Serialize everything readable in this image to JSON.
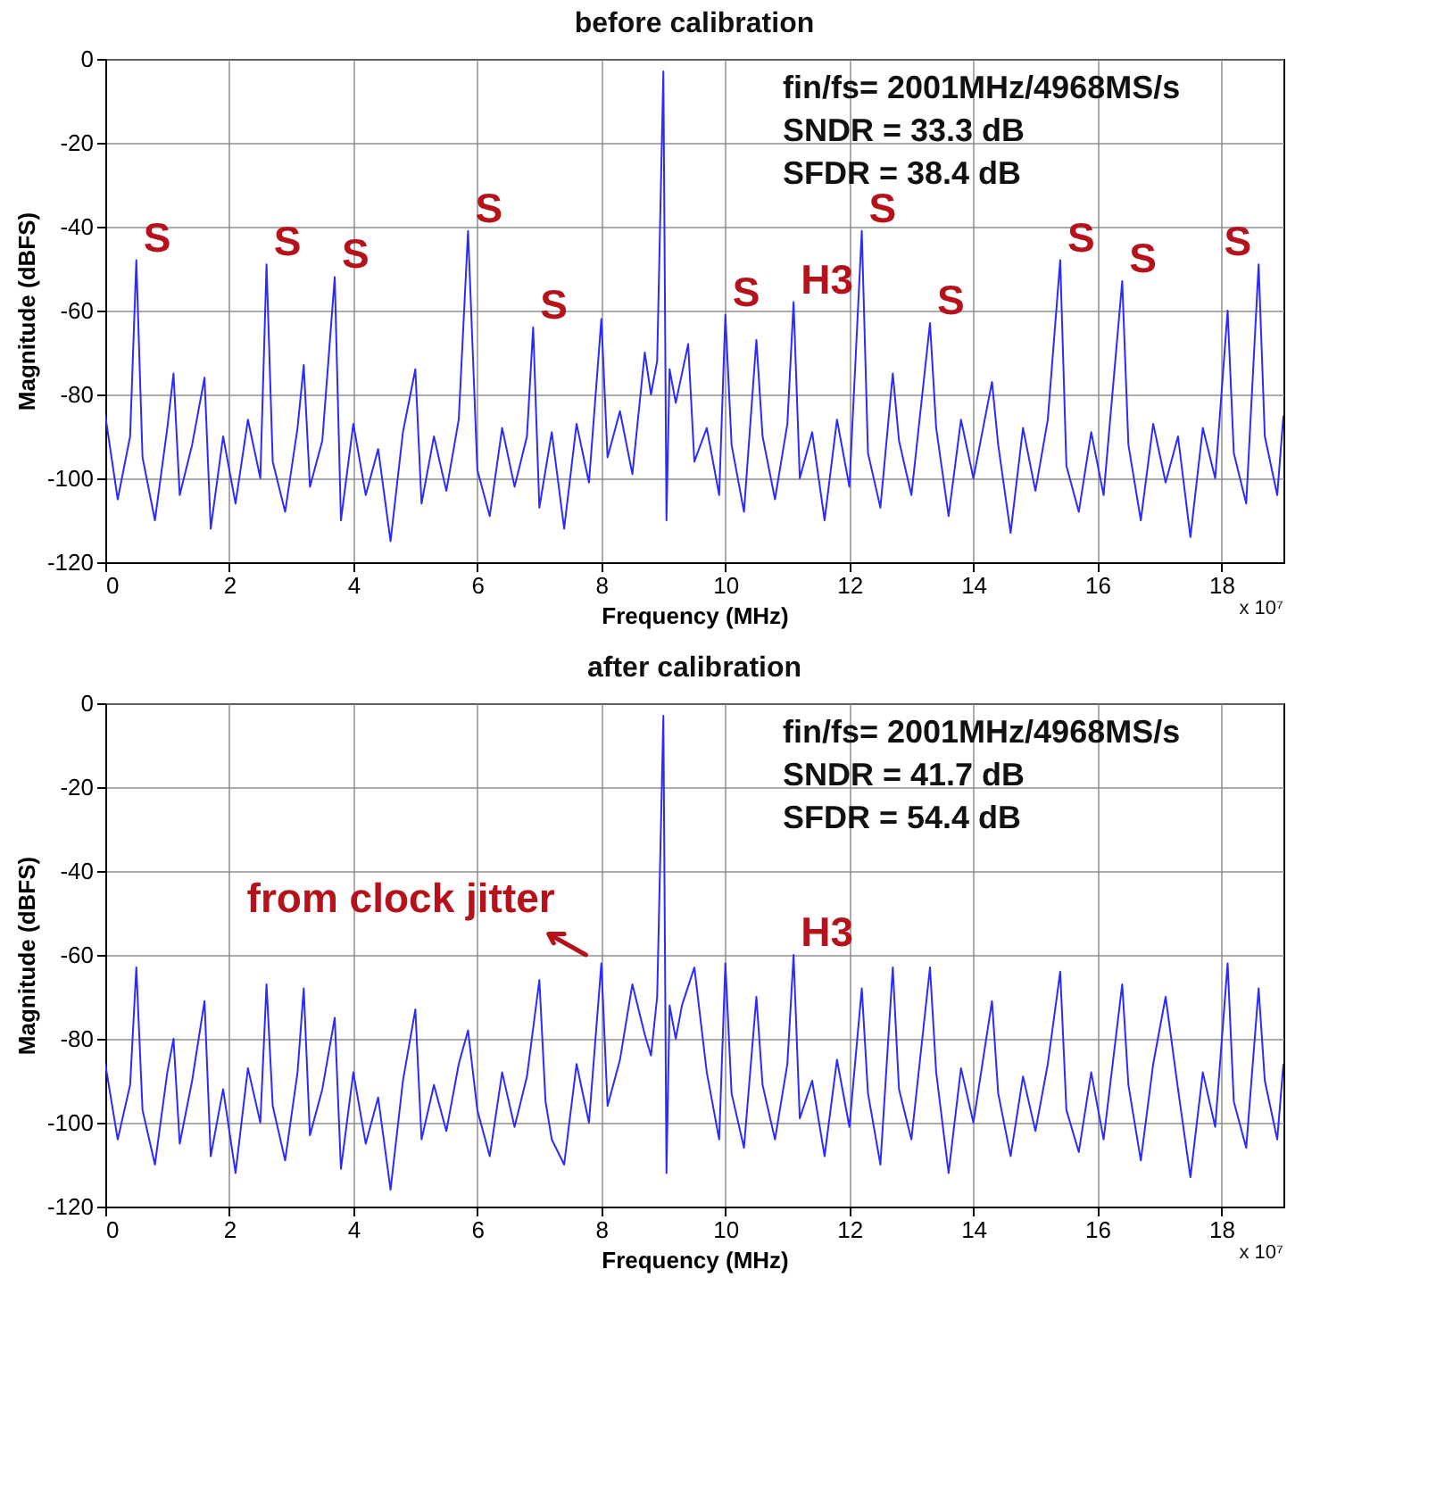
{
  "chart_data": [
    {
      "type": "line",
      "title": "before calibration",
      "xlabel": "Frequency (MHz)",
      "ylabel": "Magnitude (dBFS)",
      "xlim": [
        0,
        19
      ],
      "ylim": [
        -120,
        0
      ],
      "xticks": [
        0,
        2,
        4,
        6,
        8,
        10,
        12,
        14,
        16,
        18
      ],
      "yticks": [
        -120,
        -100,
        -80,
        -60,
        -40,
        -20,
        0
      ],
      "grid": true,
      "series": [
        {
          "color": "#2b2bff",
          "x": [
            0,
            0.2,
            0.4,
            0.5,
            0.6,
            0.8,
            1.0,
            1.1,
            1.2,
            1.4,
            1.6,
            1.7,
            1.9,
            2.1,
            2.3,
            2.5,
            2.6,
            2.7,
            2.9,
            3.1,
            3.2,
            3.3,
            3.5,
            3.7,
            3.8,
            4.0,
            4.2,
            4.4,
            4.6,
            4.8,
            5.0,
            5.1,
            5.3,
            5.5,
            5.7,
            5.85,
            6.0,
            6.2,
            6.4,
            6.6,
            6.8,
            6.9,
            7.0,
            7.2,
            7.4,
            7.6,
            7.8,
            8.0,
            8.1,
            8.3,
            8.5,
            8.7,
            8.8,
            8.9,
            9.0,
            9.05,
            9.1,
            9.2,
            9.4,
            9.5,
            9.7,
            9.9,
            10.0,
            10.1,
            10.3,
            10.5,
            10.6,
            10.8,
            11.0,
            11.1,
            11.2,
            11.4,
            11.6,
            11.8,
            12.0,
            12.2,
            12.3,
            12.5,
            12.7,
            12.8,
            13.0,
            13.3,
            13.4,
            13.6,
            13.8,
            14.0,
            14.3,
            14.4,
            14.6,
            14.8,
            15.0,
            15.2,
            15.4,
            15.5,
            15.7,
            15.9,
            16.1,
            16.4,
            16.5,
            16.7,
            16.9,
            17.1,
            17.3,
            17.5,
            17.7,
            17.9,
            18.1,
            18.2,
            18.4,
            18.6,
            18.7,
            18.9,
            19.0
          ],
          "values": [
            -85,
            -105,
            -90,
            -48,
            -95,
            -110,
            -88,
            -75,
            -104,
            -92,
            -76,
            -112,
            -90,
            -106,
            -86,
            -100,
            -49,
            -96,
            -108,
            -88,
            -73,
            -102,
            -91,
            -52,
            -110,
            -87,
            -104,
            -93,
            -115,
            -89,
            -74,
            -106,
            -90,
            -103,
            -86,
            -41,
            -98,
            -109,
            -88,
            -102,
            -90,
            -64,
            -107,
            -89,
            -112,
            -87,
            -101,
            -62,
            -95,
            -84,
            -99,
            -70,
            -80,
            -72,
            -3,
            -110,
            -74,
            -82,
            -68,
            -96,
            -88,
            -104,
            -61,
            -92,
            -108,
            -67,
            -90,
            -105,
            -87,
            -58,
            -100,
            -89,
            -110,
            -86,
            -102,
            -41,
            -94,
            -107,
            -75,
            -91,
            -104,
            -63,
            -88,
            -109,
            -86,
            -100,
            -77,
            -92,
            -113,
            -88,
            -103,
            -86,
            -48,
            -97,
            -108,
            -89,
            -104,
            -53,
            -92,
            -110,
            -87,
            -101,
            -90,
            -114,
            -88,
            -100,
            -60,
            -94,
            -106,
            -49,
            -90,
            -104,
            -85
          ]
        }
      ],
      "annotations": [
        "fin/fs= 2001MHz/4968MS/s",
        "SNDR = 33.3 dB",
        "SFDR = 38.4 dB",
        "x 10⁷",
        {
          "text": "S",
          "x": 0.5,
          "y": -48
        },
        {
          "text": "S",
          "x": 2.6,
          "y": -49
        },
        {
          "text": "S",
          "x": 3.7,
          "y": -52
        },
        {
          "text": "S",
          "x": 5.85,
          "y": -41
        },
        {
          "text": "S",
          "x": 6.9,
          "y": -64
        },
        {
          "text": "S",
          "x": 10.0,
          "y": -61
        },
        {
          "text": "H3",
          "x": 11.1,
          "y": -58
        },
        {
          "text": "S",
          "x": 12.2,
          "y": -41
        },
        {
          "text": "S",
          "x": 13.3,
          "y": -63
        },
        {
          "text": "S",
          "x": 15.4,
          "y": -48
        },
        {
          "text": "S",
          "x": 16.4,
          "y": -53
        },
        {
          "text": "S",
          "x": 18.6,
          "y": -49
        }
      ]
    },
    {
      "type": "line",
      "title": "after calibration",
      "xlabel": "Frequency (MHz)",
      "ylabel": "Magnitude (dBFS)",
      "xlim": [
        0,
        19
      ],
      "ylim": [
        -120,
        0
      ],
      "xticks": [
        0,
        2,
        4,
        6,
        8,
        10,
        12,
        14,
        16,
        18
      ],
      "yticks": [
        -120,
        -100,
        -80,
        -60,
        -40,
        -20,
        0
      ],
      "grid": true,
      "series": [
        {
          "color": "#2b2bff",
          "x": [
            0,
            0.2,
            0.4,
            0.5,
            0.6,
            0.8,
            1.0,
            1.1,
            1.2,
            1.4,
            1.6,
            1.7,
            1.9,
            2.1,
            2.3,
            2.5,
            2.6,
            2.7,
            2.9,
            3.1,
            3.2,
            3.3,
            3.5,
            3.7,
            3.8,
            4.0,
            4.2,
            4.4,
            4.6,
            4.8,
            5.0,
            5.1,
            5.3,
            5.5,
            5.7,
            5.85,
            6.0,
            6.2,
            6.4,
            6.6,
            6.8,
            7.0,
            7.1,
            7.2,
            7.4,
            7.6,
            7.8,
            8.0,
            8.1,
            8.3,
            8.5,
            8.7,
            8.8,
            8.9,
            9.0,
            9.05,
            9.1,
            9.2,
            9.3,
            9.5,
            9.7,
            9.9,
            10.0,
            10.1,
            10.3,
            10.5,
            10.6,
            10.8,
            11.0,
            11.1,
            11.2,
            11.4,
            11.6,
            11.8,
            12.0,
            12.2,
            12.3,
            12.5,
            12.7,
            12.8,
            13.0,
            13.3,
            13.4,
            13.6,
            13.8,
            14.0,
            14.3,
            14.4,
            14.6,
            14.8,
            15.0,
            15.2,
            15.4,
            15.5,
            15.7,
            15.9,
            16.1,
            16.4,
            16.5,
            16.7,
            16.9,
            17.1,
            17.3,
            17.5,
            17.7,
            17.9,
            18.1,
            18.2,
            18.4,
            18.6,
            18.7,
            18.9,
            19.0
          ],
          "values": [
            -86,
            -104,
            -91,
            -63,
            -97,
            -110,
            -88,
            -80,
            -105,
            -90,
            -71,
            -108,
            -92,
            -112,
            -87,
            -100,
            -67,
            -96,
            -109,
            -88,
            -68,
            -103,
            -92,
            -75,
            -111,
            -88,
            -105,
            -94,
            -116,
            -90,
            -73,
            -104,
            -91,
            -102,
            -86,
            -78,
            -97,
            -108,
            -88,
            -101,
            -89,
            -66,
            -95,
            -104,
            -110,
            -86,
            -100,
            -62,
            -96,
            -85,
            -67,
            -79,
            -84,
            -70,
            -3,
            -112,
            -72,
            -80,
            -72,
            -63,
            -88,
            -104,
            -62,
            -93,
            -106,
            -70,
            -91,
            -104,
            -86,
            -60,
            -99,
            -90,
            -108,
            -85,
            -101,
            -68,
            -93,
            -110,
            -63,
            -92,
            -104,
            -63,
            -88,
            -112,
            -87,
            -100,
            -71,
            -93,
            -108,
            -89,
            -102,
            -86,
            -64,
            -97,
            -107,
            -88,
            -104,
            -67,
            -91,
            -109,
            -86,
            -70,
            -92,
            -113,
            -88,
            -101,
            -62,
            -95,
            -106,
            -68,
            -90,
            -104,
            -86
          ]
        }
      ],
      "annotations": [
        "fin/fs= 2001MHz/4968MS/s",
        "SNDR = 41.7 dB",
        "SFDR = 54.4 dB",
        "x 10⁷",
        {
          "text": "from clock jitter",
          "x": 8.0,
          "y": -62
        },
        {
          "text": "H3",
          "x": 11.1,
          "y": -60
        }
      ]
    }
  ]
}
